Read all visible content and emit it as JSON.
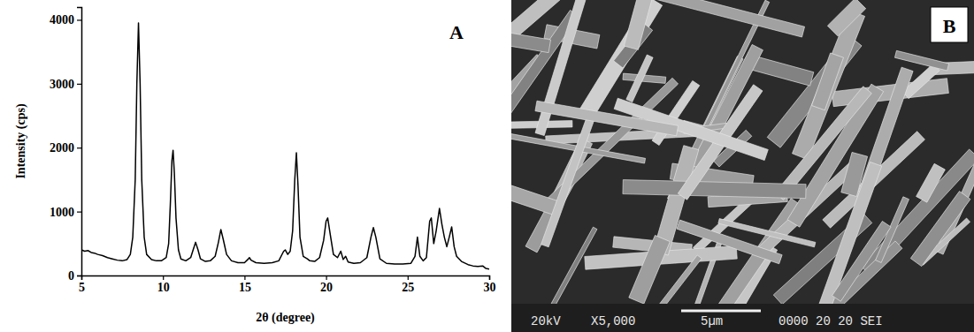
{
  "chart_data": {
    "type": "line",
    "panel": "A",
    "x_label": "2θ (degree)",
    "y_label": "Intensity (cps)",
    "color": "#000000",
    "grid": false,
    "xlim": [
      5,
      30
    ],
    "ylim": [
      0,
      4200
    ],
    "xticks": [
      5,
      10,
      15,
      20,
      25,
      30
    ],
    "yticks": [
      0,
      1000,
      2000,
      3000,
      4000
    ],
    "x": [
      5.0,
      5.2,
      5.4,
      5.6,
      5.8,
      6.0,
      6.3,
      6.6,
      6.9,
      7.2,
      7.5,
      7.8,
      8.0,
      8.15,
      8.3,
      8.4,
      8.5,
      8.6,
      8.7,
      8.85,
      9.0,
      9.3,
      9.6,
      9.9,
      10.2,
      10.35,
      10.45,
      10.55,
      10.62,
      10.7,
      10.8,
      10.95,
      11.1,
      11.4,
      11.7,
      11.85,
      12.0,
      12.15,
      12.3,
      12.6,
      12.9,
      13.2,
      13.4,
      13.55,
      13.7,
      13.9,
      14.2,
      14.6,
      15.0,
      15.2,
      15.3,
      15.4,
      15.7,
      16.2,
      16.7,
      17.1,
      17.4,
      17.5,
      17.65,
      17.8,
      17.95,
      18.08,
      18.18,
      18.28,
      18.4,
      18.6,
      18.85,
      19.0,
      19.3,
      19.6,
      19.85,
      20.0,
      20.1,
      20.25,
      20.45,
      20.7,
      20.9,
      21.05,
      21.2,
      21.35,
      21.7,
      22.1,
      22.5,
      22.75,
      22.9,
      23.05,
      23.3,
      23.7,
      24.2,
      24.7,
      25.2,
      25.45,
      25.6,
      25.75,
      25.95,
      26.15,
      26.35,
      26.45,
      26.6,
      26.75,
      26.95,
      27.1,
      27.25,
      27.4,
      27.55,
      27.7,
      27.85,
      28.0,
      28.3,
      28.7,
      29.0,
      29.3,
      29.6,
      29.8,
      30.0
    ],
    "values": [
      400,
      380,
      390,
      360,
      350,
      330,
      310,
      280,
      260,
      240,
      230,
      250,
      330,
      600,
      1500,
      3000,
      3950,
      3000,
      1500,
      600,
      330,
      250,
      230,
      230,
      280,
      500,
      1100,
      1800,
      1960,
      1600,
      900,
      400,
      260,
      230,
      280,
      400,
      520,
      400,
      260,
      220,
      230,
      300,
      520,
      720,
      560,
      330,
      230,
      200,
      200,
      250,
      280,
      240,
      200,
      190,
      200,
      230,
      380,
      400,
      330,
      380,
      700,
      1500,
      1920,
      1400,
      600,
      300,
      260,
      230,
      220,
      280,
      550,
      850,
      900,
      650,
      330,
      280,
      380,
      250,
      300,
      210,
      190,
      200,
      280,
      600,
      750,
      600,
      260,
      190,
      180,
      180,
      190,
      300,
      600,
      300,
      230,
      280,
      850,
      900,
      500,
      700,
      1050,
      800,
      600,
      450,
      600,
      760,
      450,
      300,
      220,
      170,
      150,
      140,
      150,
      110,
      100
    ]
  },
  "sem_image": {
    "panel": "B",
    "labels": [
      "20kV",
      "X5,000",
      "5µm",
      "0000 20 20 SEI"
    ]
  }
}
